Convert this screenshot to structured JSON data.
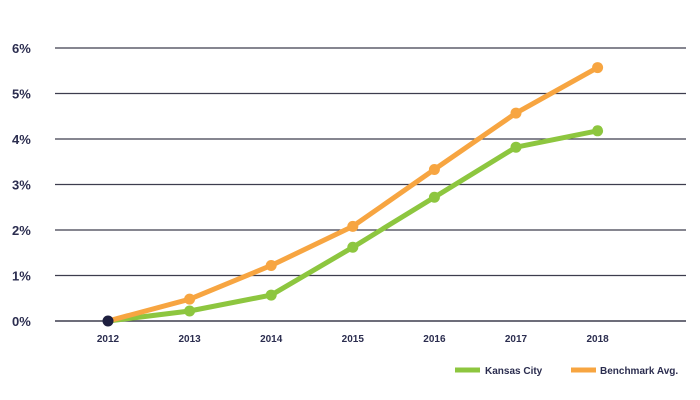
{
  "chart_data": {
    "type": "line",
    "x": [
      "2012",
      "2013",
      "2014",
      "2015",
      "2016",
      "2017",
      "2018"
    ],
    "y_ticks": [
      "0%",
      "1%",
      "2%",
      "3%",
      "4%",
      "5%",
      "6%"
    ],
    "ylim": [
      0,
      6
    ],
    "y_unit": "%",
    "grid": "horizontal",
    "legend_position": "bottom-right",
    "series": [
      {
        "name": "Kansas City",
        "color": "#8dc63f",
        "values": [
          0,
          0.22,
          0.57,
          1.62,
          2.72,
          3.82,
          4.18
        ]
      },
      {
        "name": "Benchmark Avg.",
        "color": "#f7a541",
        "values": [
          0,
          0.48,
          1.22,
          2.08,
          3.33,
          4.57,
          5.57
        ]
      }
    ],
    "origin_marker_color": "#1e1f3f",
    "gridline_color": "#3d3d4e"
  }
}
